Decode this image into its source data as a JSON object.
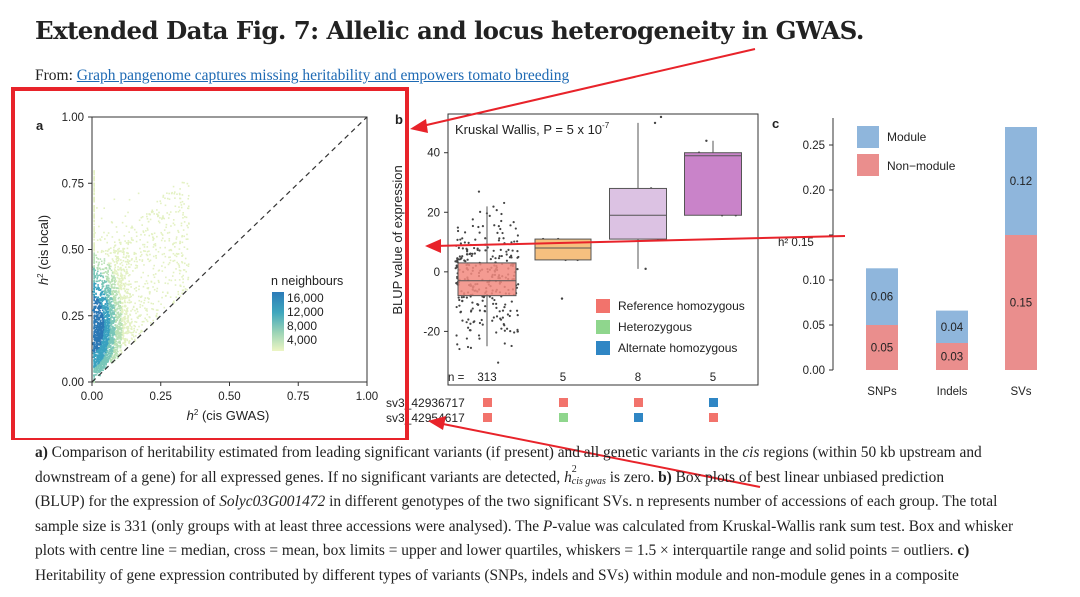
{
  "title": "Extended Data Fig. 7: Allelic and locus heterogeneity in GWAS.",
  "from_label": "From:",
  "from_link": "Graph pangenome captures missing heritability and empowers tomato breeding",
  "panels": {
    "a": {
      "letter": "a",
      "xlabel_prefix": "h",
      "xlabel_sup": "2",
      "xlabel_rest": " (cis GWAS)",
      "ylabel_prefix": "h",
      "ylabel_sup": "2",
      "ylabel_rest": " (cis local)",
      "xticks": [
        "0.00",
        "0.25",
        "0.50",
        "0.75",
        "1.00"
      ],
      "yticks": [
        "0.00",
        "0.25",
        "0.50",
        "0.75",
        "1.00"
      ],
      "legend_title": "n neighbours",
      "legend_labels": [
        "16,000",
        "12,000",
        "8,000",
        "4,000"
      ]
    },
    "b": {
      "letter": "b",
      "stat_label": "Kruskal Wallis,  P = 5 x 10",
      "stat_exp": "-7",
      "ylabel": "BLUP value of expression",
      "yticks": [
        "40",
        "20",
        "0",
        "-20"
      ],
      "n_prefix": "n =",
      "counts": [
        "313",
        "5",
        "8",
        "5"
      ],
      "legend": [
        "Reference homozygous",
        "Heterozygous",
        "Alternate homozygous"
      ],
      "sv_rows": [
        "sv3_42936717",
        "sv3_42954617"
      ]
    },
    "c": {
      "letter": "c",
      "ylabel": "h² 0.15",
      "yticks": [
        "0.25",
        "0.20",
        "0.15",
        "0.10",
        "0.05",
        "0.00"
      ],
      "legend": [
        "Module",
        "Non−module"
      ],
      "categories": [
        "SNPs",
        "Indels",
        "SVs"
      ],
      "bar_labels_module": [
        "0.06",
        "0.04",
        "0.12"
      ],
      "bar_labels_nonmodule": [
        "0.05",
        "0.03",
        "0.15"
      ]
    }
  },
  "chart_data": [
    {
      "type": "scatter",
      "title": "",
      "xlabel": "h2 (cis GWAS)",
      "ylabel": "h2 (cis local)",
      "xlim": [
        0,
        1
      ],
      "ylim": [
        0,
        1
      ],
      "note": "density-colored scatter with dashed y = x line",
      "legend": "n neighbours",
      "series": [
        {
          "name": "genes",
          "x": [
            0.02,
            0.05,
            0.08,
            0.1,
            0.15,
            0.2,
            0.3
          ],
          "y": [
            0.15,
            0.25,
            0.32,
            0.3,
            0.4,
            0.5,
            0.6
          ]
        }
      ]
    },
    {
      "type": "box",
      "title": "Kruskal Wallis, P = 5 x 10-7",
      "ylabel": "BLUP value of expression",
      "ylim": [
        -38,
        53
      ],
      "categories": [
        "313",
        "5",
        "8",
        "5"
      ],
      "series": [
        {
          "name": "group1",
          "min": -25,
          "q1": -8,
          "median": -3,
          "q3": 3,
          "max": 22
        },
        {
          "name": "group2",
          "min": 4,
          "q1": 4,
          "median": 8,
          "q3": 11,
          "max": 11
        },
        {
          "name": "group3",
          "min": 1,
          "q1": 11,
          "median": 19,
          "q3": 28,
          "max": 50
        },
        {
          "name": "group4",
          "min": 19,
          "q1": 19,
          "median": 39,
          "q3": 40,
          "max": 44
        }
      ]
    },
    {
      "type": "bar",
      "title": "",
      "ylabel": "h2",
      "categories": [
        "SNPs",
        "Indels",
        "SVs"
      ],
      "ylim": [
        0,
        0.28
      ],
      "series": [
        {
          "name": "Non−module",
          "values": [
            0.05,
            0.03,
            0.15
          ]
        },
        {
          "name": "Module",
          "values": [
            0.06,
            0.04,
            0.12
          ]
        }
      ],
      "totals": [
        0.113,
        0.066,
        0.27
      ]
    }
  ],
  "caption": {
    "lines": [
      [
        [
          "b",
          "a)"
        ],
        [
          "t",
          " Comparison of heritability estimated from leading significant variants (if present) and all genetic variants in the "
        ],
        [
          "i",
          "cis"
        ],
        [
          "t",
          " regions (within 50 kb upstream and"
        ]
      ],
      [
        [
          "t",
          "downstream of a gene) for all expressed genes. If no significant variants are detected, "
        ],
        [
          "m",
          "h²cis gwas"
        ],
        [
          "t",
          " is zero. "
        ],
        [
          "b",
          "b)"
        ],
        [
          "t",
          " Box plots of best linear unbiased prediction"
        ]
      ],
      [
        [
          "t",
          "(BLUP) for the expression of "
        ],
        [
          "i",
          "Solyc03G001472"
        ],
        [
          "t",
          " in different genotypes of the two significant SVs. n represents number of accessions of each group. The total"
        ]
      ],
      [
        [
          "t",
          "sample size is 331 (only groups with at least three accessions were analysed). The "
        ],
        [
          "i",
          "P"
        ],
        [
          "t",
          "-value was calculated from Kruskal-Wallis rank sum test. Box and whisker"
        ]
      ],
      [
        [
          "t",
          "plots with centre line = median, cross = mean, box limits = upper and lower quartiles, whiskers = 1.5 × interquartile range and solid points = outliers. "
        ],
        [
          "b",
          "c)"
        ]
      ],
      [
        [
          "t",
          "Heritability of gene expression contributed by different types of variants (SNPs, indels and SVs) within module and non-module genes in a composite"
        ]
      ]
    ]
  },
  "colors": {
    "annotation_red": "#e8232a",
    "module_blue": "#8fb6dc",
    "nonmodule_red": "#ea8e8d",
    "link_blue": "#1e6ab4"
  }
}
